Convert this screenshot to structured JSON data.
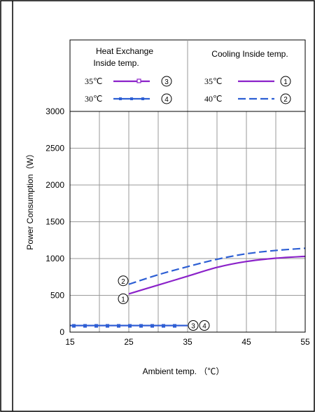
{
  "chart_data": {
    "type": "line",
    "xlabel": "Ambient temp. （℃）",
    "ylabel": "Power Consumption（W）",
    "xlim": [
      15,
      55
    ],
    "ylim": [
      0,
      3000
    ],
    "x_ticks": [
      "15",
      "25",
      "35",
      "45",
      "55"
    ],
    "y_ticks": [
      "0",
      "500",
      "1000",
      "1500",
      "2000",
      "2500",
      "3000"
    ],
    "grid": true,
    "legend": {
      "placement": "top",
      "left_header": [
        "Heat Exchange",
        "Inside temp."
      ],
      "right_header": "Cooling Inside temp.",
      "left_entries": [
        {
          "temp": "35℃",
          "marker": "3"
        },
        {
          "temp": "30℃",
          "marker": "4"
        }
      ],
      "right_entries": [
        {
          "temp": "35℃",
          "marker": "1"
        },
        {
          "temp": "40℃",
          "marker": "2"
        }
      ]
    },
    "series": [
      {
        "marker": "1",
        "group": "Cooling Inside temp.",
        "temp": "35℃",
        "color": "#8b22c9",
        "dash": "solid",
        "x": [
          25,
          30,
          35,
          40,
          45,
          50,
          55
        ],
        "y": [
          520,
          640,
          760,
          880,
          960,
          1005,
          1030
        ]
      },
      {
        "marker": "2",
        "group": "Cooling Inside temp.",
        "temp": "40℃",
        "color": "#2d5fd4",
        "dash": "dashed",
        "x": [
          25,
          30,
          35,
          40,
          45,
          50,
          55
        ],
        "y": [
          650,
          780,
          890,
          990,
          1065,
          1110,
          1140
        ]
      },
      {
        "marker": "3",
        "group": "Heat Exchange Inside temp.",
        "temp": "35℃",
        "color": "#8b22c9",
        "dash": "solid",
        "square_markers": true,
        "x": [
          15,
          35
        ],
        "y": [
          90,
          90
        ]
      },
      {
        "marker": "4",
        "group": "Heat Exchange Inside temp.",
        "temp": "30℃",
        "color": "#2d5fd4",
        "dash": "solid",
        "square_markers": true,
        "x": [
          15,
          35
        ],
        "y": [
          90,
          90
        ]
      }
    ]
  }
}
